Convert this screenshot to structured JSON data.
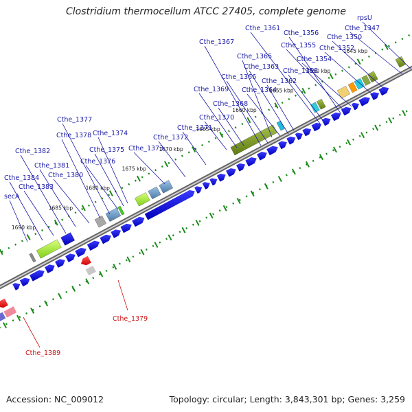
{
  "header": {
    "title": "Clostridium thermocellum ATCC 27405, complete genome"
  },
  "footer": {
    "accession": "Accession: NC_009012",
    "summary": "Topology: circular; Length: 3,843,301 bp; Genes: 3,259"
  },
  "colors": {
    "gene_label": "#1a1aa8",
    "gene_label_alt": "#cc1111",
    "forward_gene": "#0a0ad8",
    "reverse_gene": "#ee1111",
    "backbone": "#8a8a8a",
    "scale_dots": "#1a8a1a"
  },
  "scale": {
    "unit": "kbp",
    "ticks": [
      "1690 kbp",
      "1685 kbp",
      "1680 kbp",
      "1675 kbp",
      "1670 kbp",
      "1665 kbp",
      "1660 kbp",
      "1655 kbp",
      "1650 kbp",
      "1645 kbp"
    ]
  },
  "genes_forward": [
    "secA",
    "Cthe_1384",
    "Cthe_1383",
    "Cthe_1382",
    "Cthe_1381",
    "Cthe_1380",
    "Cthe_1378",
    "Cthe_1377",
    "Cthe_1376",
    "Cthe_1375",
    "Cthe_1374",
    "Cthe_1373",
    "Cthe_1372",
    "Cthe_1371",
    "Cthe_1370",
    "Cthe_1369",
    "Cthe_1368",
    "Cthe_1367",
    "Cthe_1366",
    "Cthe_1365",
    "Cthe_1364",
    "Cthe_1363",
    "Cthe_1362",
    "Cthe_1361",
    "Cthe_1358",
    "Cthe_1356",
    "Cthe_1355",
    "Cthe_1354",
    "Cthe_1352",
    "Cthe_1350",
    "Cthe_1347",
    "rpsU"
  ],
  "genes_reverse": [
    "Cthe_1379",
    "Cthe_1389"
  ]
}
